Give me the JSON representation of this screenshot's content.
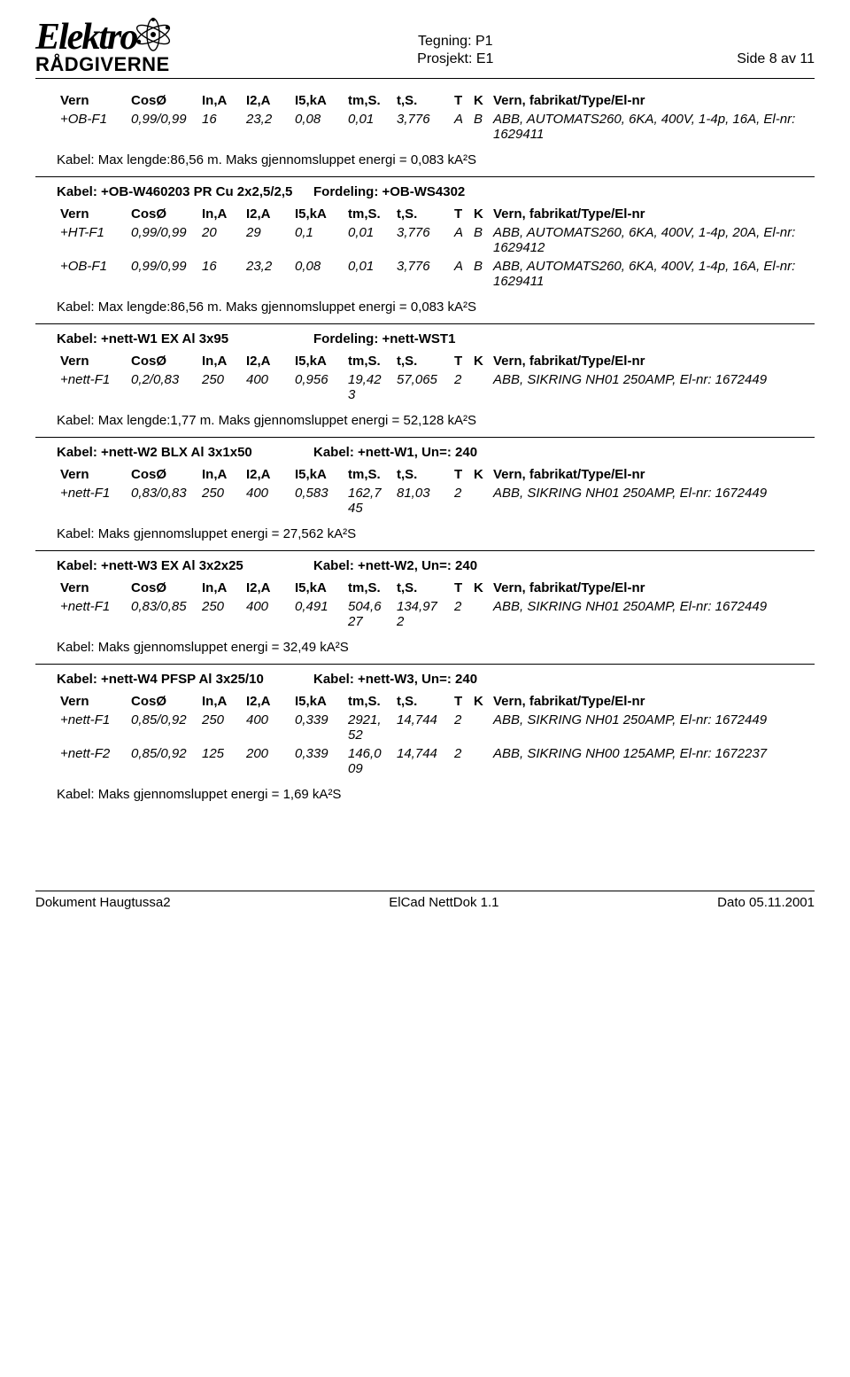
{
  "header": {
    "logo1": "Elektro",
    "logo2": "RÅDGIVERNE",
    "tegning": "Tegning: P1",
    "prosjekt": "Prosjekt: E1",
    "side": "Side 8 av 11"
  },
  "cols": {
    "vern": "Vern",
    "coso": "CosØ",
    "in": "In,A",
    "i2": "I2,A",
    "i5": "I5,kA",
    "tm": "tm,S.",
    "ts": "t,S.",
    "t": "T",
    "k": "K",
    "fab": "Vern, fabrikat/Type/El-nr"
  },
  "blocks": [
    {
      "kabel": null,
      "rows": [
        {
          "vern": "+OB-F1",
          "coso": "0,99/0,99",
          "in": "16",
          "i2": "23,2",
          "i5": "0,08",
          "tm": "0,01",
          "ts": "3,776",
          "t": "A",
          "k": "B",
          "fab": "ABB, AUTOMATS260, 6KA, 400V, 1-4p, 16A, El-nr: 1629411"
        }
      ],
      "note": "Kabel: Max lengde:86,56 m. Maks gjennomsluppet energi = 0,083 kA²S"
    },
    {
      "kabel": {
        "lbl": "Kabel:   +OB-W460203 PR Cu 2x2,5/2,5",
        "ford": "Fordeling: +OB-WS4302"
      },
      "rows": [
        {
          "vern": "+HT-F1",
          "coso": "0,99/0,99",
          "in": "20",
          "i2": "29",
          "i5": "0,1",
          "tm": "0,01",
          "ts": "3,776",
          "t": "A",
          "k": "B",
          "fab": "ABB, AUTOMATS260, 6KA, 400V, 1-4p, 20A, El-nr: 1629412"
        },
        {
          "vern": "+OB-F1",
          "coso": "0,99/0,99",
          "in": "16",
          "i2": "23,2",
          "i5": "0,08",
          "tm": "0,01",
          "ts": "3,776",
          "t": "A",
          "k": "B",
          "fab": "ABB, AUTOMATS260, 6KA, 400V, 1-4p, 16A, El-nr: 1629411"
        }
      ],
      "note": "Kabel: Max lengde:86,56 m. Maks gjennomsluppet energi = 0,083 kA²S"
    },
    {
      "kabel": {
        "lbl": "Kabel:   +nett-W1 EX Al 3x95",
        "ford": "Fordeling: +nett-WST1"
      },
      "rows": [
        {
          "vern": "+nett-F1",
          "coso": "0,2/0,83",
          "in": "250",
          "i2": "400",
          "i5": "0,956",
          "tm": "19,42\n3",
          "ts": "57,065",
          "t": "2",
          "k": "",
          "fab": "ABB, SIKRING NH01 250AMP, El-nr: 1672449"
        }
      ],
      "note": "Kabel: Max lengde:1,77 m. Maks gjennomsluppet energi = 52,128 kA²S"
    },
    {
      "kabel": {
        "lbl": "Kabel:   +nett-W2 BLX Al 3x1x50",
        "ford": "Kabel: +nett-W1, Un=: 240"
      },
      "rows": [
        {
          "vern": "+nett-F1",
          "coso": "0,83/0,83",
          "in": "250",
          "i2": "400",
          "i5": "0,583",
          "tm": "162,7\n45",
          "ts": "81,03",
          "t": "2",
          "k": "",
          "fab": "ABB, SIKRING NH01 250AMP, El-nr: 1672449"
        }
      ],
      "note": "Kabel: Maks gjennomsluppet energi = 27,562 kA²S"
    },
    {
      "kabel": {
        "lbl": "Kabel:   +nett-W3 EX Al 3x2x25",
        "ford": "Kabel: +nett-W2, Un=: 240"
      },
      "rows": [
        {
          "vern": "+nett-F1",
          "coso": "0,83/0,85",
          "in": "250",
          "i2": "400",
          "i5": "0,491",
          "tm": "504,6\n27",
          "ts": "134,97\n2",
          "t": "2",
          "k": "",
          "fab": "ABB, SIKRING NH01 250AMP, El-nr: 1672449"
        }
      ],
      "note": "Kabel: Maks gjennomsluppet energi = 32,49 kA²S"
    },
    {
      "kabel": {
        "lbl": "Kabel:   +nett-W4 PFSP Al 3x25/10",
        "ford": "Kabel: +nett-W3, Un=: 240"
      },
      "rows": [
        {
          "vern": "+nett-F1",
          "coso": "0,85/0,92",
          "in": "250",
          "i2": "400",
          "i5": "0,339",
          "tm": "2921,\n52",
          "ts": "14,744",
          "t": "2",
          "k": "",
          "fab": "ABB, SIKRING NH01 250AMP, El-nr: 1672449"
        },
        {
          "vern": "+nett-F2",
          "coso": "0,85/0,92",
          "in": "125",
          "i2": "200",
          "i5": "0,339",
          "tm": "146,0\n09",
          "ts": "14,744",
          "t": "2",
          "k": "",
          "fab": "ABB, SIKRING NH00 125AMP, El-nr: 1672237"
        }
      ],
      "note": "Kabel: Maks gjennomsluppet energi = 1,69 kA²S"
    }
  ],
  "footer": {
    "left": "Dokument Haugtussa2",
    "center": "ElCad NettDok 1.1",
    "right": "Dato 05.11.2001"
  }
}
